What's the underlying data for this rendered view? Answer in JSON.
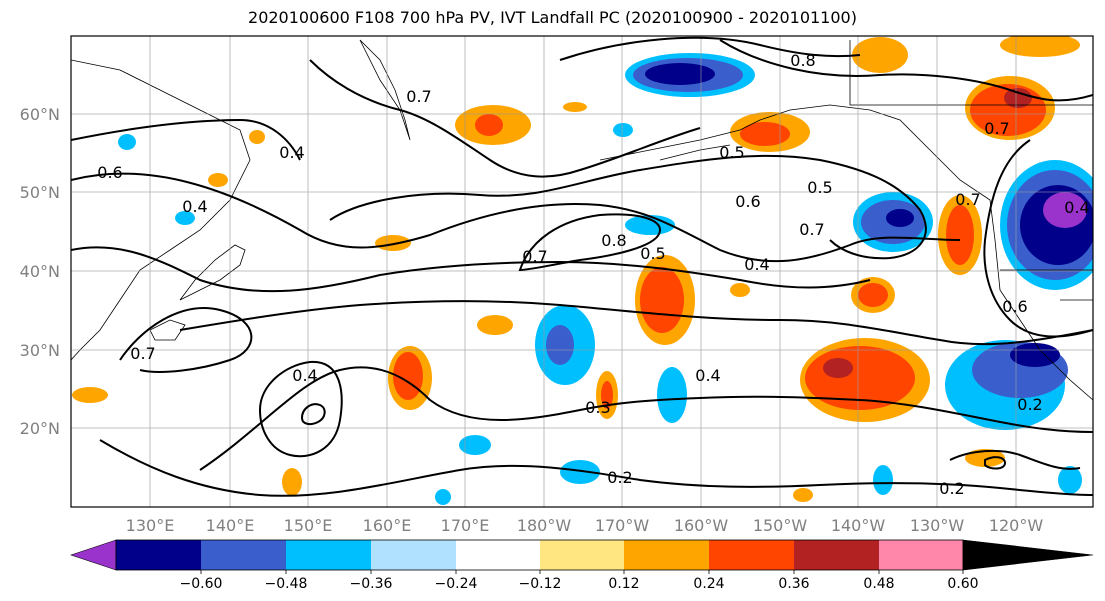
{
  "title": "2020100600 F108 700 hPa PV, IVT Landfall PC (2020100900 - 2020101100)",
  "map": {
    "lat_labels": [
      "60°N",
      "50°N",
      "40°N",
      "30°N",
      "20°N"
    ],
    "lon_labels": [
      "130°E",
      "140°E",
      "150°E",
      "160°E",
      "170°E",
      "180°W",
      "170°W",
      "160°W",
      "150°W",
      "140°W",
      "130°W",
      "120°W"
    ],
    "contour_labels": [
      "0.8",
      "0.7",
      "0.5",
      "0.4",
      "0.6",
      "0.5",
      "0.7",
      "0.6",
      "0.4",
      "0.7",
      "0.8",
      "0.5",
      "0.4",
      "0.7",
      "0.4",
      "0.3",
      "0.2",
      "0.2",
      "0.2",
      "0.7",
      "0.4",
      "0.6",
      "0.7",
      "0.4"
    ]
  },
  "colorbar": {
    "colors": [
      "#9933cc",
      "#00008b",
      "#3a5fcd",
      "#00bfff",
      "#b0e2ff",
      "#ffffff",
      "#ffe680",
      "#ffa500",
      "#ff4500",
      "#b22222",
      "#ff88aa"
    ],
    "labels": [
      "−0.60",
      "−0.48",
      "−0.36",
      "−0.24",
      "−0.12",
      "0.12",
      "0.24",
      "0.36",
      "0.48",
      "0.60"
    ]
  }
}
